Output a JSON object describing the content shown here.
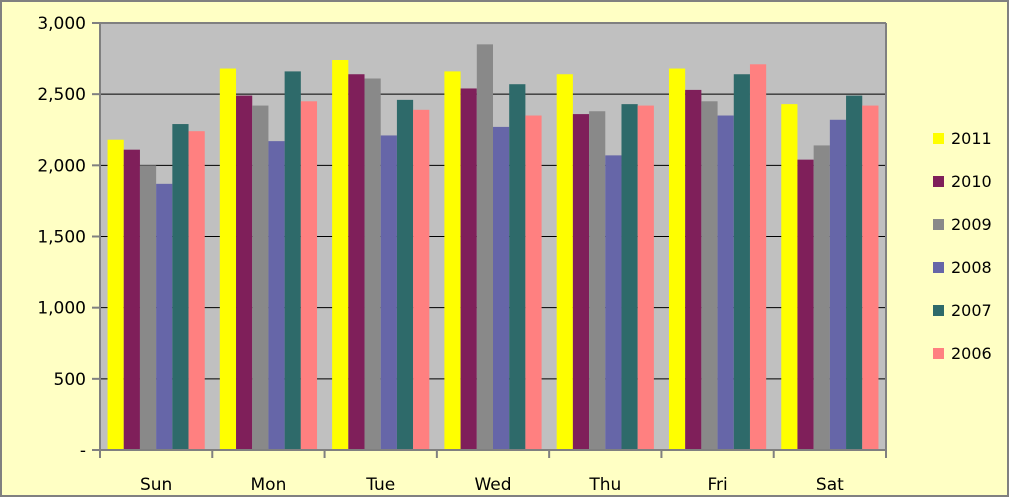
{
  "chart_data": {
    "type": "bar",
    "title": "",
    "xlabel": "",
    "ylabel": "",
    "ylim": [
      0,
      3000
    ],
    "y_ticks": [
      0,
      500,
      1000,
      1500,
      2000,
      2500,
      3000
    ],
    "y_tick_labels": [
      "-",
      "500",
      "1,000",
      "1,500",
      "2,000",
      "2,500",
      "3,000"
    ],
    "grid": true,
    "legend_position": "right",
    "plot_background": "#c0c0c0",
    "categories": [
      "Sun",
      "Mon",
      "Tue",
      "Wed",
      "Thu",
      "Fri",
      "Sat"
    ],
    "series": [
      {
        "name": "2011",
        "color": "#ffff00",
        "values": [
          2180,
          2680,
          2740,
          2660,
          2640,
          2680,
          2430
        ]
      },
      {
        "name": "2010",
        "color": "#7f1f5a",
        "values": [
          2110,
          2490,
          2640,
          2540,
          2360,
          2530,
          2040
        ]
      },
      {
        "name": "2009",
        "color": "#898989",
        "values": [
          2000,
          2420,
          2610,
          2850,
          2380,
          2450,
          2140
        ]
      },
      {
        "name": "2008",
        "color": "#6666a8",
        "values": [
          1870,
          2170,
          2210,
          2270,
          2070,
          2350,
          2320
        ]
      },
      {
        "name": "2007",
        "color": "#2e6a6a",
        "values": [
          2290,
          2660,
          2460,
          2570,
          2430,
          2640,
          2490
        ]
      },
      {
        "name": "2006",
        "color": "#ff8080",
        "values": [
          2240,
          2450,
          2390,
          2350,
          2420,
          2710,
          2420
        ]
      }
    ]
  }
}
